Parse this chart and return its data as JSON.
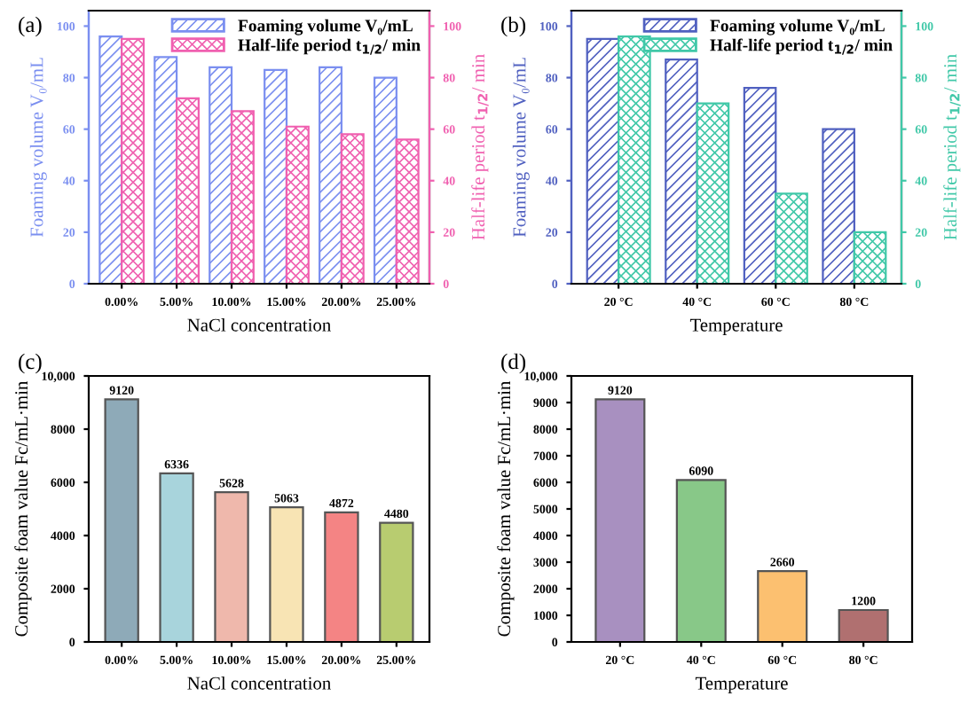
{
  "chart_data": [
    {
      "type": "bar",
      "annotations": [
        "(a)"
      ],
      "xlabel": "NaCl concentration",
      "ylabel": "Foaming volume V₀/mL",
      "y2label": "Half-life period t$_{1/2}$/ min",
      "categories": [
        "0.00%",
        "5.00%",
        "10.00%",
        "15.00%",
        "20.00%",
        "25.00%"
      ],
      "series": [
        {
          "name": "Foaming volume V₀/mL",
          "color": "#7b8ff0",
          "values": [
            96,
            88,
            84,
            83,
            84,
            80
          ]
        },
        {
          "name": "Half-life period t$_{1/2}$/ min",
          "color": "#f060b0",
          "axis": "y2",
          "values": [
            95,
            72,
            67,
            61,
            58,
            56
          ]
        }
      ],
      "ylim": [
        0,
        106
      ],
      "yticks": [
        0,
        20,
        40,
        60,
        80,
        100
      ],
      "y2lim": [
        0,
        106
      ],
      "y2ticks": [
        0,
        20,
        40,
        60,
        80,
        100
      ],
      "legend": "top right",
      "grid": false
    },
    {
      "type": "bar",
      "annotations": [
        "(b)"
      ],
      "xlabel": "Temperature",
      "ylabel": "Foaming volume V₀/mL",
      "y2label": "Half-life period t$_{1/2}$/ min",
      "categories": [
        "20 °C",
        "40 °C",
        "60 °C",
        "80 °C"
      ],
      "series": [
        {
          "name": "Foaming volume V₀/mL",
          "color": "#5060c0",
          "values": [
            95,
            87,
            76,
            60
          ]
        },
        {
          "name": "Half-life period t$_{1/2}$/ min",
          "color": "#40c8a8",
          "axis": "y2",
          "values": [
            96,
            70,
            35,
            20
          ]
        }
      ],
      "ylim": [
        0,
        106
      ],
      "yticks": [
        0,
        20,
        40,
        60,
        80,
        100
      ],
      "y2lim": [
        0,
        106
      ],
      "y2ticks": [
        0,
        20,
        40,
        60,
        80,
        100
      ],
      "legend": "top right",
      "grid": false
    },
    {
      "type": "bar",
      "annotations": [
        "(c)"
      ],
      "xlabel": "NaCl concentration",
      "ylabel": "Composite foam value Fc/mL·min",
      "categories": [
        "0.00%",
        "5.00%",
        "10.00%",
        "15.00%",
        "20.00%",
        "25.00%"
      ],
      "values": [
        9120,
        6336,
        5628,
        5063,
        4872,
        4480
      ],
      "colors": [
        "#8eaab8",
        "#a8d4dc",
        "#efb8ac",
        "#f8e4b4",
        "#f48484",
        "#b8cc70"
      ],
      "ylim": [
        0,
        10000
      ],
      "yticks": [
        0,
        2000,
        4000,
        6000,
        8000,
        {
          "value": 10000,
          "label": "10,000"
        }
      ],
      "data_labels": true,
      "grid": false
    },
    {
      "type": "bar",
      "annotations": [
        "(d)"
      ],
      "xlabel": "Temperature",
      "ylabel": "Composite foam value Fc/mL·min",
      "categories": [
        "20 °C",
        "40 °C",
        "60 °C",
        "80 °C"
      ],
      "values": [
        9120,
        6090,
        2660,
        1200
      ],
      "colors": [
        "#a890c0",
        "#88c888",
        "#fcc070",
        "#b07070"
      ],
      "ylim": [
        0,
        10000
      ],
      "yticks": [
        0,
        1000,
        2000,
        3000,
        4000,
        5000,
        6000,
        7000,
        8000,
        9000,
        {
          "value": 10000,
          "label": "10,000"
        }
      ],
      "data_labels": true,
      "grid": false
    }
  ]
}
